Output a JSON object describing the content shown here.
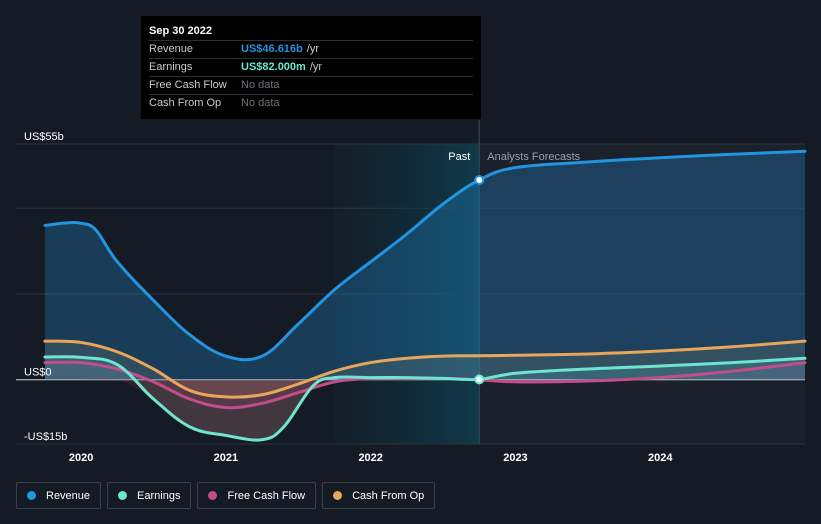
{
  "tooltip": {
    "date": "Sep 30 2022",
    "rows": [
      {
        "name": "Revenue",
        "value": "US$46.616b",
        "unit": "/yr"
      },
      {
        "name": "Earnings",
        "value": "US$82.000m",
        "unit": "/yr"
      },
      {
        "name": "Free Cash Flow",
        "value": "No data",
        "unit": ""
      },
      {
        "name": "Cash From Op",
        "value": "No data",
        "unit": ""
      }
    ]
  },
  "legend": [
    {
      "label": "Revenue",
      "color": "#2394df"
    },
    {
      "label": "Earnings",
      "color": "#6ee5cf"
    },
    {
      "label": "Free Cash Flow",
      "color": "#c34d8b"
    },
    {
      "label": "Cash From Op",
      "color": "#e8a65b"
    }
  ],
  "chart_data": {
    "type": "area",
    "y_labels": [
      "US$55b",
      "US$0",
      "-US$15b"
    ],
    "x_ticks": [
      "2020",
      "2021",
      "2022",
      "2023",
      "2024"
    ],
    "ylim": [
      -15,
      55
    ],
    "xlim": [
      2019.55,
      2025.0
    ],
    "divider_x": 2022.75,
    "past_label": "Past",
    "forecast_label": "Analysts Forecasts",
    "series": [
      {
        "name": "Revenue",
        "color": "#2394df",
        "x": [
          2019.75,
          2019.9,
          2020.0,
          2020.1,
          2020.25,
          2020.5,
          2020.75,
          2021.0,
          2021.25,
          2021.5,
          2021.75,
          2022.0,
          2022.25,
          2022.5,
          2022.75,
          2023.0,
          2023.5,
          2024.0,
          2024.5,
          2025.0
        ],
        "y": [
          36,
          36.6,
          36.5,
          35,
          27.5,
          18.5,
          10.5,
          5.5,
          5.5,
          13,
          21,
          27.5,
          34,
          41,
          46.6,
          49.5,
          50.8,
          51.8,
          52.6,
          53.3
        ]
      },
      {
        "name": "Earnings",
        "color": "#6ee5cf",
        "x": [
          2019.75,
          2020.0,
          2020.25,
          2020.5,
          2020.75,
          2021.0,
          2021.25,
          2021.4,
          2021.6,
          2021.75,
          2022.0,
          2022.25,
          2022.5,
          2022.75,
          2023.0,
          2023.5,
          2024.0,
          2024.5,
          2025.0
        ],
        "y": [
          5.3,
          5.2,
          3.5,
          -4.5,
          -11,
          -13,
          -14,
          -11,
          -1.5,
          0.5,
          0.5,
          0.5,
          0.3,
          0.082,
          1.5,
          2.5,
          3.2,
          4,
          5
        ]
      },
      {
        "name": "Free Cash Flow",
        "color": "#c34d8b",
        "x": [
          2019.75,
          2020.0,
          2020.25,
          2020.5,
          2020.75,
          2021.0,
          2021.25,
          2021.5,
          2021.75,
          2022.0,
          2022.25,
          2022.5,
          2022.75,
          2023.0,
          2023.5,
          2024.0,
          2024.5,
          2025.0
        ],
        "y": [
          4,
          4,
          2.5,
          -0.5,
          -4.5,
          -6.5,
          -5.5,
          -3,
          -0.5,
          0.3,
          0.3,
          0.3,
          0,
          -0.5,
          -0.3,
          0.5,
          2,
          4
        ]
      },
      {
        "name": "Cash From Op",
        "color": "#e8a65b",
        "x": [
          2019.75,
          2020.0,
          2020.25,
          2020.5,
          2020.75,
          2021.0,
          2021.25,
          2021.5,
          2021.75,
          2022.0,
          2022.25,
          2022.5,
          2022.75,
          2023.0,
          2023.5,
          2024.0,
          2024.5,
          2025.0
        ],
        "y": [
          9,
          8.7,
          6.5,
          2.5,
          -2.5,
          -4,
          -3.5,
          -1,
          2,
          4,
          5,
          5.5,
          5.6,
          5.7,
          6,
          6.7,
          7.7,
          9
        ]
      }
    ]
  }
}
